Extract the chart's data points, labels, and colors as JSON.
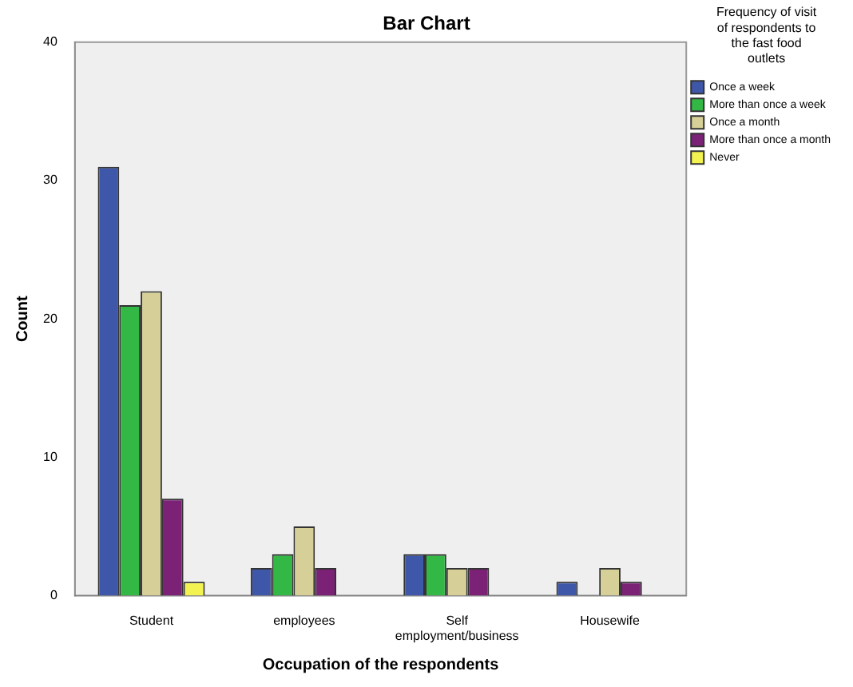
{
  "chart_data": {
    "type": "bar",
    "title": "Bar Chart",
    "xlabel": "Occupation of the respondents",
    "ylabel": "Count",
    "legend_title": "Frequency of visit of respondents to the fast food outlets",
    "categories": [
      "Student",
      "employees",
      "Self employment/business",
      "Housewife"
    ],
    "series": [
      {
        "name": "Once a week",
        "color": "#3f57a8",
        "values": [
          31,
          2,
          3,
          1
        ]
      },
      {
        "name": "More than once a week",
        "color": "#33b846",
        "values": [
          21,
          3,
          3,
          0
        ]
      },
      {
        "name": "Once a month",
        "color": "#d6d098",
        "values": [
          22,
          5,
          2,
          2
        ]
      },
      {
        "name": "More than once a month",
        "color": "#7b2277",
        "values": [
          7,
          2,
          2,
          1
        ]
      },
      {
        "name": "Never",
        "color": "#f2f250",
        "values": [
          1,
          0,
          0,
          0
        ]
      }
    ],
    "ylim": [
      0,
      40
    ],
    "yticks": [
      0,
      10,
      20,
      30,
      40
    ],
    "grid": false,
    "legend": "top right"
  }
}
